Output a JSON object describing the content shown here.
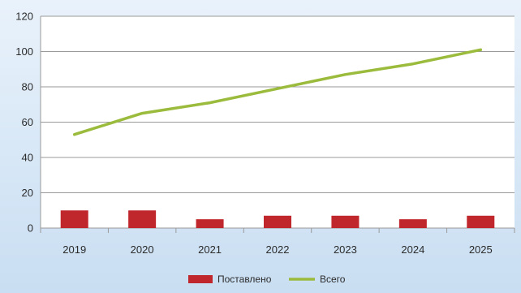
{
  "chart_data": {
    "type": "bar",
    "categories": [
      "2019",
      "2020",
      "2021",
      "2022",
      "2023",
      "2024",
      "2025"
    ],
    "series": [
      {
        "name": "Поставлено",
        "kind": "bar",
        "values": [
          10,
          10,
          5,
          7,
          7,
          5,
          7
        ]
      },
      {
        "name": "Всего",
        "kind": "line",
        "values": [
          53,
          65,
          71,
          79,
          87,
          93,
          101
        ]
      }
    ],
    "yticks": [
      "0",
      "20",
      "40",
      "60",
      "80",
      "100",
      "120"
    ],
    "ylim": [
      0,
      120
    ],
    "grid": true,
    "legend_position": "bottom",
    "colors": {
      "bar": "#c0272d",
      "line": "#9bbb3c",
      "grid": "#9a9a9a",
      "plot_bg": "#ffffff",
      "frame_bg": "#d7e7f6"
    }
  }
}
